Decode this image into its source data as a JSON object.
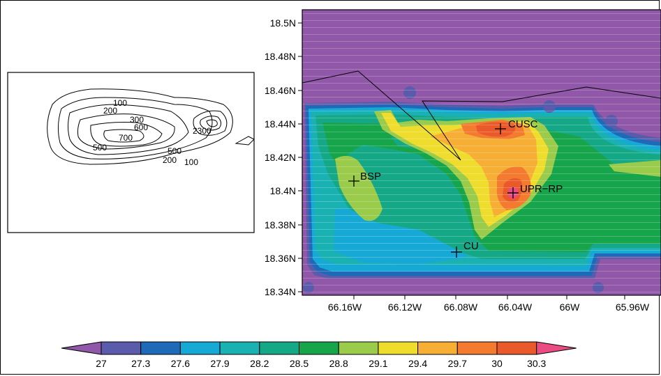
{
  "map": {
    "lat_ticks": [
      "18.5N",
      "18.48N",
      "18.46N",
      "18.44N",
      "18.42N",
      "18.4N",
      "18.38N",
      "18.36N",
      "18.34N"
    ],
    "lon_ticks": [
      "66.16W",
      "66.12W",
      "66.08W",
      "66.04W",
      "66W",
      "65.96W"
    ],
    "stations": [
      {
        "label": "CUSC"
      },
      {
        "label": "BSP"
      },
      {
        "label": "UPR−RP"
      },
      {
        "label": "CU"
      }
    ]
  },
  "inset": {
    "contour_labels": [
      "100",
      "200",
      "300",
      "600",
      "700",
      "500",
      "500",
      "200",
      "100",
      "2300"
    ]
  },
  "colorbar": {
    "labels": [
      "27",
      "27.3",
      "27.6",
      "27.9",
      "28.2",
      "28.5",
      "28.8",
      "29.1",
      "29.4",
      "29.7",
      "30",
      "30.3"
    ],
    "colors": [
      "#9157a8",
      "#5a5bab",
      "#1f6ab8",
      "#17a9d6",
      "#1ab1b3",
      "#15a887",
      "#17a54c",
      "#9acb4a",
      "#efdd2e",
      "#f6ae35",
      "#f37a2f",
      "#e9592a",
      "#e94b82"
    ]
  }
}
